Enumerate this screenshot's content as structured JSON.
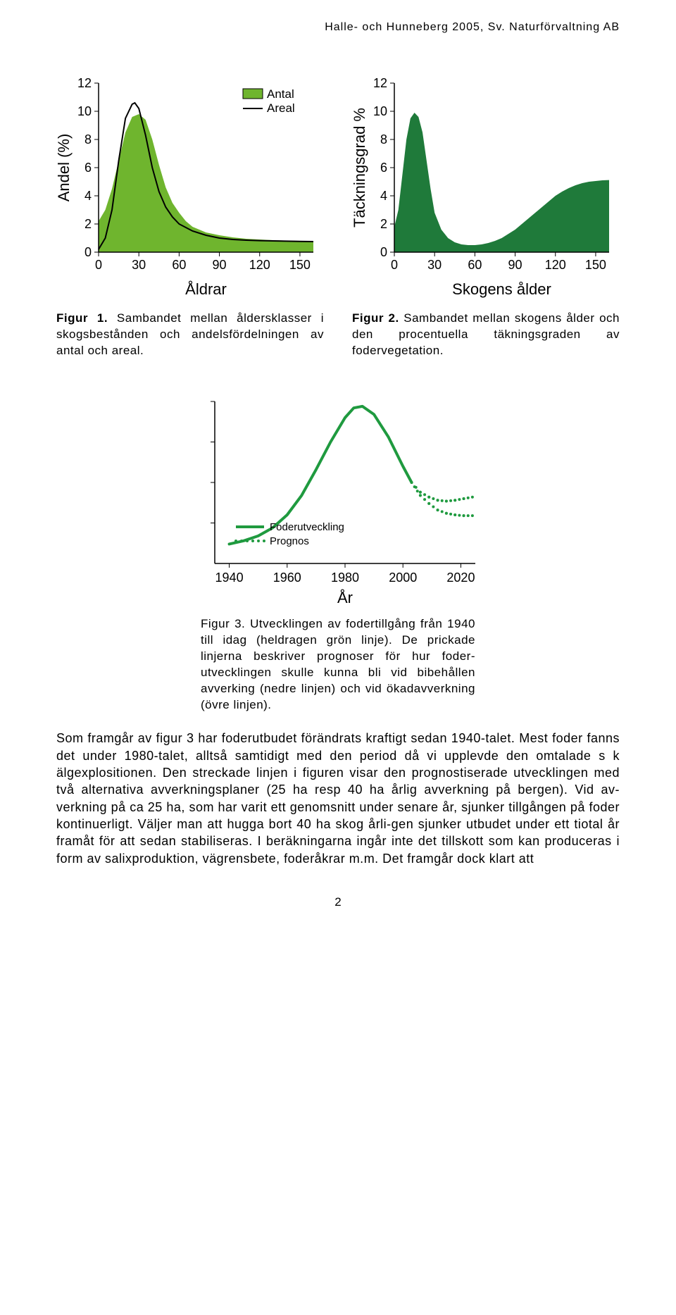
{
  "header": "Halle- och Hunneberg 2005, Sv. Naturförvaltning AB",
  "chart1": {
    "type": "area+line",
    "ylabel": "Andel (%)",
    "xlabel": "Åldrar",
    "yticks": [
      0,
      2,
      4,
      6,
      8,
      10,
      12
    ],
    "xticks": [
      0,
      30,
      60,
      90,
      120,
      150
    ],
    "ylim": [
      0,
      12
    ],
    "xlim": [
      0,
      160
    ],
    "area_color": "#6fb52e",
    "line_color": "#000000",
    "area_points": [
      [
        0,
        2.2
      ],
      [
        5,
        3.0
      ],
      [
        10,
        4.5
      ],
      [
        15,
        6.5
      ],
      [
        20,
        8.5
      ],
      [
        25,
        9.6
      ],
      [
        30,
        9.8
      ],
      [
        35,
        9.4
      ],
      [
        40,
        8.0
      ],
      [
        45,
        6.2
      ],
      [
        50,
        4.6
      ],
      [
        55,
        3.5
      ],
      [
        60,
        2.8
      ],
      [
        65,
        2.2
      ],
      [
        70,
        1.8
      ],
      [
        80,
        1.4
      ],
      [
        90,
        1.2
      ],
      [
        100,
        1.05
      ],
      [
        110,
        0.95
      ],
      [
        120,
        0.9
      ],
      [
        130,
        0.85
      ],
      [
        140,
        0.82
      ],
      [
        150,
        0.8
      ],
      [
        160,
        0.8
      ]
    ],
    "line_points": [
      [
        0,
        0.2
      ],
      [
        5,
        1.0
      ],
      [
        10,
        3.0
      ],
      [
        15,
        6.5
      ],
      [
        20,
        9.5
      ],
      [
        25,
        10.5
      ],
      [
        27,
        10.6
      ],
      [
        30,
        10.2
      ],
      [
        35,
        8.3
      ],
      [
        40,
        6.0
      ],
      [
        45,
        4.3
      ],
      [
        50,
        3.2
      ],
      [
        55,
        2.5
      ],
      [
        60,
        2.0
      ],
      [
        70,
        1.5
      ],
      [
        80,
        1.2
      ],
      [
        90,
        1.0
      ],
      [
        100,
        0.9
      ],
      [
        110,
        0.85
      ],
      [
        120,
        0.82
      ],
      [
        130,
        0.8
      ],
      [
        140,
        0.78
      ],
      [
        150,
        0.76
      ],
      [
        160,
        0.75
      ]
    ],
    "legend": {
      "antal": "Antal",
      "areal": "Areal",
      "swatch_fill": "#6fb52e",
      "swatch_stroke": "#000000"
    }
  },
  "chart2": {
    "type": "area",
    "ylabel": "Täckningsgrad %",
    "xlabel": "Skogens ålder",
    "yticks": [
      0,
      2,
      4,
      6,
      8,
      10,
      12
    ],
    "xticks": [
      0,
      30,
      60,
      90,
      120,
      150
    ],
    "ylim": [
      0,
      12
    ],
    "xlim": [
      0,
      160
    ],
    "area_color": "#1f7a3a",
    "area_points": [
      [
        0,
        1.8
      ],
      [
        3,
        3.0
      ],
      [
        6,
        5.5
      ],
      [
        9,
        8.0
      ],
      [
        12,
        9.5
      ],
      [
        15,
        9.9
      ],
      [
        18,
        9.6
      ],
      [
        21,
        8.5
      ],
      [
        24,
        6.5
      ],
      [
        27,
        4.5
      ],
      [
        30,
        2.8
      ],
      [
        35,
        1.6
      ],
      [
        40,
        1.0
      ],
      [
        45,
        0.7
      ],
      [
        50,
        0.55
      ],
      [
        55,
        0.5
      ],
      [
        60,
        0.5
      ],
      [
        65,
        0.55
      ],
      [
        70,
        0.65
      ],
      [
        75,
        0.8
      ],
      [
        80,
        1.0
      ],
      [
        85,
        1.3
      ],
      [
        90,
        1.6
      ],
      [
        95,
        2.0
      ],
      [
        100,
        2.4
      ],
      [
        105,
        2.8
      ],
      [
        110,
        3.2
      ],
      [
        115,
        3.6
      ],
      [
        120,
        4.0
      ],
      [
        125,
        4.3
      ],
      [
        130,
        4.55
      ],
      [
        135,
        4.75
      ],
      [
        140,
        4.9
      ],
      [
        145,
        5.0
      ],
      [
        150,
        5.05
      ],
      [
        155,
        5.1
      ],
      [
        160,
        5.12
      ]
    ]
  },
  "caption1": {
    "bold": "Figur 1.",
    "text": " Sambandet mellan åldersklasser i skogsbestånden och andelsfördelningen av antal och areal."
  },
  "caption2": {
    "bold": "Figur 2.",
    "text": " Sambandet mellan skogens ålder och den procentuella täkningsgraden av fodervegetation."
  },
  "chart3": {
    "type": "line",
    "xlabel": "År",
    "xticks": [
      1940,
      1960,
      1980,
      2000,
      2020
    ],
    "xlim": [
      1935,
      2025
    ],
    "ylim": [
      0,
      1
    ],
    "line_color": "#1f9a3f",
    "line_width": 4,
    "dot_color": "#1f9a3f",
    "main_points": [
      [
        1940,
        0.12
      ],
      [
        1945,
        0.14
      ],
      [
        1950,
        0.17
      ],
      [
        1955,
        0.22
      ],
      [
        1960,
        0.3
      ],
      [
        1965,
        0.42
      ],
      [
        1970,
        0.58
      ],
      [
        1975,
        0.75
      ],
      [
        1980,
        0.9
      ],
      [
        1983,
        0.96
      ],
      [
        1986,
        0.97
      ],
      [
        1990,
        0.92
      ],
      [
        1995,
        0.78
      ],
      [
        2000,
        0.6
      ],
      [
        2003,
        0.5
      ]
    ],
    "prognosis_upper": [
      [
        2003,
        0.5
      ],
      [
        2006,
        0.44
      ],
      [
        2009,
        0.41
      ],
      [
        2012,
        0.39
      ],
      [
        2015,
        0.385
      ],
      [
        2018,
        0.39
      ],
      [
        2021,
        0.4
      ],
      [
        2024,
        0.41
      ]
    ],
    "prognosis_lower": [
      [
        2003,
        0.5
      ],
      [
        2006,
        0.42
      ],
      [
        2009,
        0.37
      ],
      [
        2012,
        0.33
      ],
      [
        2015,
        0.31
      ],
      [
        2018,
        0.3
      ],
      [
        2021,
        0.295
      ],
      [
        2024,
        0.295
      ]
    ],
    "legend": {
      "line": "Foderutveckling",
      "dots": "Prognos"
    }
  },
  "caption3": {
    "bold": "Figur 3.",
    "text": " Utvecklingen av fodertillgång från 1940 till idag (heldragen grön linje). De prickade linjerna beskriver prognoser för hur foder-utvecklingen skulle kunna bli vid bibehållen avverking (nedre linjen) och vid ökadavverkning (övre linjen)."
  },
  "body": "Som framgår av figur 3 har foderutbudet förändrats kraftigt sedan 1940-talet. Mest foder fanns det under 1980-talet, alltså samtidigt med den period då vi upplevde den omtalade s k älgexplositionen. Den streckade linjen i figuren visar den prognostiserade utvecklingen med två alternativa avverkningsplaner (25 ha resp 40 ha årlig avverkning på bergen). Vid av-verkning på ca 25 ha, som har varit ett genomsnitt under senare år, sjunker tillgången på foder kontinuerligt. Väljer man att hugga bort 40 ha skog årli-gen sjunker utbudet under ett tiotal år framåt för att sedan stabiliseras. I beräkningarna ingår inte det tillskott som kan produceras i form av salixproduktion, vägrensbete, foderåkrar m.m. Det framgår dock klart att",
  "pagenum": "2"
}
